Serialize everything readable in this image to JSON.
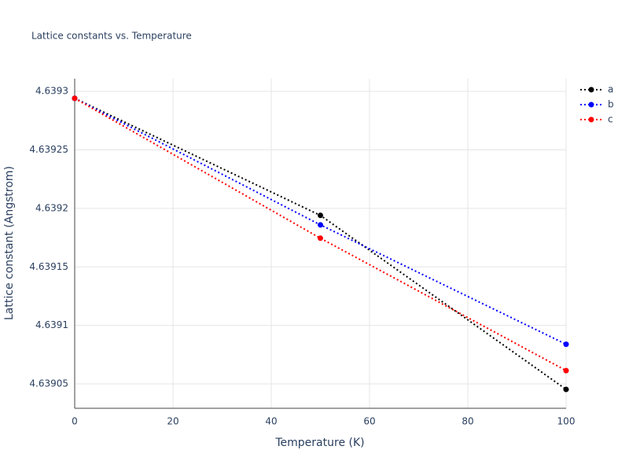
{
  "chart_data": {
    "type": "line",
    "title": "Lattice constants vs. Temperature",
    "x_label": "Temperature (K)",
    "y_label": "Lattice constant (Angstrom)",
    "x": [
      0,
      50,
      100
    ],
    "series": [
      {
        "name": "a",
        "color": "#000000",
        "values": [
          4.639294,
          4.639194,
          4.6390453
        ]
      },
      {
        "name": "b",
        "color": "#0000ff",
        "values": [
          4.639294,
          4.6391859,
          4.6390839
        ]
      },
      {
        "name": "c",
        "color": "#ff0000",
        "values": [
          4.639294,
          4.6391745,
          4.6390614
        ]
      }
    ],
    "xlim": [
      0,
      100
    ],
    "xticks": [
      0,
      20,
      40,
      60,
      80,
      100
    ],
    "ylim": [
      4.6390292,
      4.6393108
    ],
    "yticks": [
      4.63905,
      4.6391,
      4.63915,
      4.6392,
      4.63925,
      4.6393
    ],
    "grid": true,
    "legend": "top-right"
  }
}
